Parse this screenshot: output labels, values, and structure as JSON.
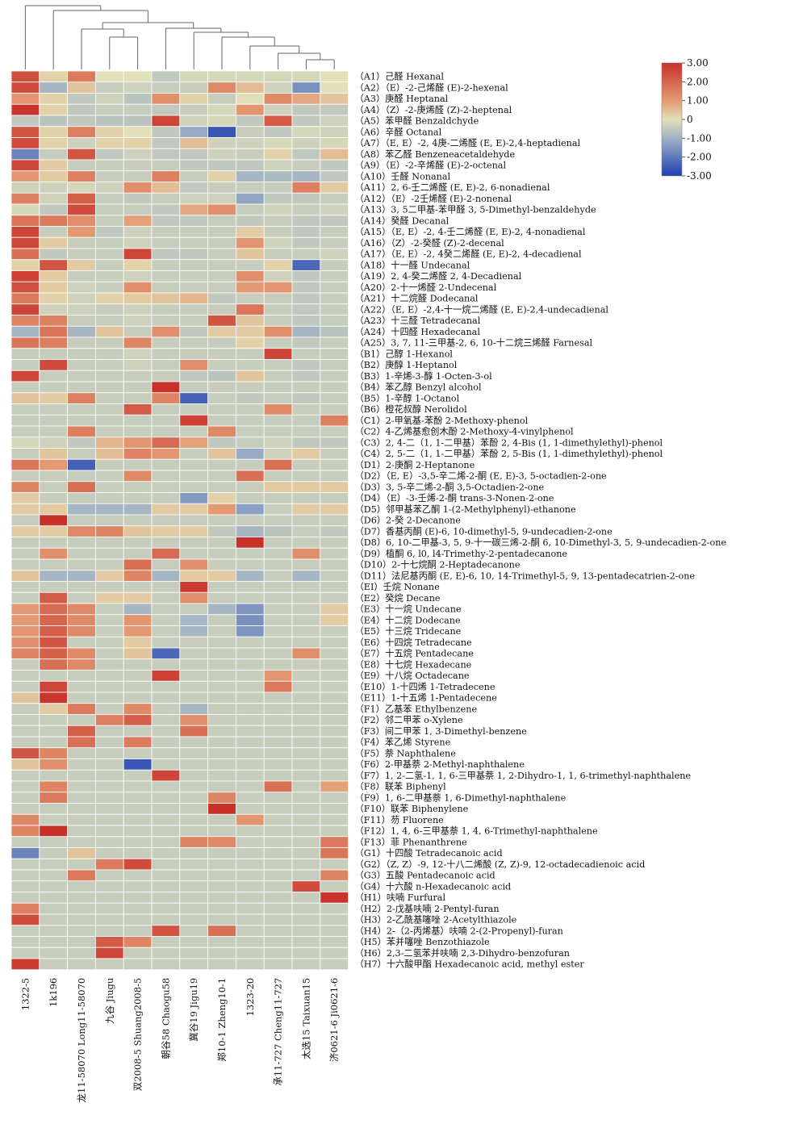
{
  "chart_data": {
    "type": "heatmap",
    "title": "",
    "xlabel": "",
    "ylabel": "",
    "columns": [
      "1322-5",
      "1k196",
      "龙11-58070 Long11-58070",
      "九谷 Jiugu",
      "双2008-5 Shuang2008-5",
      "朝谷58 Chaogu58",
      "冀谷19 Jigu19",
      "郑10-1 Zheng10-1",
      "1323-20",
      "承11-727 Cheng11-727",
      "太选15 Taixuan15",
      "济0621-6 Ji0621-6"
    ],
    "rows": [
      "（A1）己醛 Hexanal",
      "（A2）（E）-2-己烯醛 (E)-2-hexenal",
      "（A3）庚醛 Heptanal",
      "（A4）（Z）-2-庚烯醛 (Z)-2-heptenal",
      "（A5）苯甲醛 Benzaldchyde",
      "（A6）辛醛 Octanal",
      "（A7）（E, E）-2, 4庚-二烯醛 (E, E)-2,4-heptadienal",
      "（A8）苯乙醛 Benzeneacetaldehyde",
      "（A9）（E）-2-辛烯醛 (E)-2-octenal",
      "（A10）壬醛 Nonanal",
      "（A11）2, 6-壬二烯醛 (E, E)-2, 6-nonadienal",
      "（A12）（E）-2壬烯醛 (E)-2-nonenal",
      "（A13）3, 5二甲基-苯甲醛 3, 5-Dimethyl-benzaldehyde",
      "（A14）癸醛 Decanal",
      "（A15）（E, E）-2, 4-壬二烯醛 (E, E)-2, 4-nonadienal",
      "（A16）（Z）-2-癸醛 (Z)-2-decenal",
      "（A17）（E, E）-2, 4癸二烯醛 (E, E)-2, 4-decadienal",
      "（A18）十一醛 Undecanal",
      "（A19）2, 4-癸二烯醛 2, 4-Decadienal",
      "（A20）2-十一烯醛 2-Undecenal",
      "（A21）十二烷醛 Dodecanal",
      "（A22）（E, E）-2,4-十一烷二烯醛 (E, E)-2,4-undecadienal",
      "（A23）十三醛 Tetradecanal",
      "（A24）十四醛 Hexadecanal",
      "（A25）3, 7, 11-三甲基-2, 6, 10-十二烷三烯醛 Farnesal",
      "（B1）己醇 1-Hexanol",
      "（B2）庚醇 1-Heptanol",
      "（B3）1-辛烯-3-醇 1-Octen-3-ol",
      "（B4）苯乙醇 Benzyl alcohol",
      "（B5）1-辛醇 1-Octanol",
      "（B6）橙花叔醇 Nerolidol",
      "（C1）2-甲氧基-苯酚 2-Methoxy-phenol",
      "（C2）4-乙烯基愈创木酚 2-Methoxy-4-vinylphenol",
      "（C3）2, 4-二（1, 1-二甲基）苯酚 2, 4-Bis (1, 1-dimethylethyl)-phenol",
      "（C4）2, 5-二（1, 1-二甲基）苯酚 2, 5-Bis (1, 1-dimethylethyl)-phenol",
      "（D1）2-庚酮 2-Heptanone",
      "（D2）（E, E）-3,5-辛二烯-2-酮 (E, E)-3, 5-octadien-2-one",
      "（D3）3, 5-辛二烯-2-酮 3,5-Octadien-2-one",
      "（D4）（E）-3-壬烯-2-酮 trans-3-Nonen-2-one",
      "（D5）邻甲基苯乙酮 1-(2-Methylphenyl)-ethanone",
      "（D6）2-癸 2-Decanone",
      "（D7）香基丙酮 (E)-6, 10-dimethyl-5, 9-undecadien-2-one",
      "（D8）6, 10-二甲基-3, 5, 9-十一碳三烯-2-酮 6, 10-Dimethyl-3, 5, 9-undecadien-2-one",
      "（D9）植酮 6, l0, l4-Trimethy-2-pentadecanone",
      "（D10）2-十七烷酮 2-Heptadecanone",
      "（D11）法尼基丙酮 (E, E)-6, 10, 14-Trimethyl-5, 9, 13-pentadecatrien-2-one",
      "（EI）壬烷 Nonane",
      "（E2）癸烷 Decane",
      "（E3）十一烷 Undecane",
      "（E4）十二烷 Dodecane",
      "（E5）十三烷 Tridecane",
      "（E6）十四烷 Tetradecane",
      "（E7）十五烷 Pentadecane",
      "（E8）十七烷 Hexadecane",
      "（E9）十八烷 Octadecane",
      "（E10）1-十四烯 1-Tetradecene",
      "（E11）1-十五烯 1-Pentadecene",
      "（F1）乙基苯 Ethylbenzene",
      "（F2）邻二甲苯 o-Xylene",
      "（F3）间二甲苯 1, 3-Dimethyl-benzene",
      "（F4）苯乙烯 Styrene",
      "（F5）萘 Naphthalene",
      "（F6）2-甲基萘 2-Methyl-naphthalene",
      "（F7）1, 2-二氢-1, 1, 6-三甲基萘 1, 2-Dihydro-1, 1, 6-trimethyl-naphthalene",
      "（F8）联苯 Biphenyl",
      "（F9）1, 6-二甲基萘 1, 6-Dimethyl-naphthalene",
      "（F10）联苯 Biphenylene",
      "（F11）芴 Fluorene",
      "（F12）1, 4, 6-三甲基萘 1, 4, 6-Trimethyl-naphthalene",
      "（F13）菲 Phenanthrene",
      "（G1）十四酸 Tetradecanoic acid",
      "（G2）（Z, Z）-9, 12-十八二烯酸 (Z, Z)-9, 12-octadecadienoic acid",
      "（G3）五酸 Pentadecanoic acid",
      "（G4）十六酸 n-Hexadecanoic acid",
      "（H1）呋喃 Furfural",
      "（H2）2-戊基呋喃 2-Pentyl-furan",
      "（H3）2-乙酰基噻唑 2-Acetylthiazole",
      "（H4）2-（2-丙烯基）呋喃 2-(2-Propenyl)-furan",
      "（H5）苯并噻唑 Benzothiazole",
      "（H6）2,3-二氢苯并呋喃 2,3-Dihydro-benzofuran",
      "（H7）十六酸甲酯 Hexadecanoic acid, methyl ester"
    ],
    "values": [
      [
        2.4,
        0.2,
        1.6,
        0.0,
        0.0,
        -0.5,
        -0.2,
        -0.2,
        -0.2,
        -0.2,
        -0.2,
        0.0
      ],
      [
        2.5,
        -0.9,
        0.4,
        -0.4,
        -0.3,
        -0.4,
        -0.4,
        1.3,
        0.5,
        -0.3,
        -1.6,
        0.0
      ],
      [
        1.1,
        0.2,
        -0.5,
        -0.3,
        -0.6,
        1.2,
        0.2,
        -0.4,
        0.0,
        1.3,
        0.8,
        0.4
      ],
      [
        2.9,
        0.2,
        -0.5,
        -0.4,
        -0.4,
        -0.5,
        -0.4,
        -0.2,
        1.1,
        -0.3,
        -0.5,
        -0.5
      ],
      [
        -0.5,
        -0.6,
        -0.5,
        -0.6,
        -0.6,
        2.6,
        -0.3,
        -0.2,
        -0.5,
        2.2,
        -0.5,
        -0.3
      ],
      [
        2.3,
        0.2,
        1.5,
        0.2,
        0.0,
        -0.5,
        -1.1,
        -2.6,
        -0.4,
        -0.5,
        -0.2,
        -0.3
      ],
      [
        2.5,
        0.2,
        -0.3,
        0.2,
        0.2,
        -0.5,
        0.5,
        -0.3,
        -0.3,
        -0.2,
        -0.3,
        -0.2
      ],
      [
        -1.8,
        -0.4,
        2.3,
        -0.5,
        -0.3,
        -0.5,
        -0.5,
        -0.3,
        -0.4,
        0.2,
        -0.5,
        0.5
      ],
      [
        2.6,
        0.3,
        -0.4,
        -0.4,
        -0.4,
        -0.4,
        -0.5,
        -0.5,
        -0.5,
        -0.3,
        -0.4,
        -0.5
      ],
      [
        1.1,
        0.3,
        1.5,
        -0.4,
        -0.4,
        1.5,
        -0.4,
        0.2,
        -0.9,
        -0.8,
        -0.9,
        -0.5
      ],
      [
        -0.3,
        -0.3,
        -0.2,
        -0.3,
        1.2,
        0.5,
        -0.5,
        -0.4,
        -0.4,
        -0.4,
        1.5,
        0.3
      ],
      [
        1.5,
        -0.3,
        2.1,
        -0.4,
        -0.5,
        -0.4,
        -0.3,
        -0.3,
        -1.2,
        -0.5,
        -0.5,
        -0.4
      ],
      [
        -0.2,
        -0.5,
        2.5,
        -0.4,
        -0.4,
        -0.5,
        0.8,
        1.2,
        -0.4,
        -0.3,
        -0.4,
        -0.3
      ],
      [
        1.7,
        1.6,
        1.2,
        -0.4,
        0.9,
        -0.5,
        -0.5,
        -0.4,
        -0.5,
        -0.4,
        -0.5,
        -0.5
      ],
      [
        2.6,
        -0.4,
        1.0,
        -0.5,
        -0.3,
        -0.4,
        -0.4,
        -0.4,
        0.3,
        -0.4,
        -0.5,
        -0.4
      ],
      [
        2.6,
        0.3,
        -0.4,
        -0.4,
        -0.3,
        -0.4,
        -0.4,
        -0.4,
        1.1,
        -0.3,
        -0.5,
        -0.4
      ],
      [
        1.8,
        -0.5,
        -0.4,
        -0.4,
        2.6,
        -0.5,
        -0.5,
        -0.4,
        0.4,
        -0.4,
        -0.4,
        -0.3
      ],
      [
        0.2,
        2.3,
        0.3,
        -0.4,
        0.2,
        -0.4,
        -0.4,
        -0.4,
        -0.4,
        0.2,
        -2.3,
        -0.4
      ],
      [
        2.7,
        0.3,
        -0.4,
        -0.4,
        -0.3,
        -0.4,
        -0.4,
        -0.4,
        1.2,
        -0.3,
        -0.5,
        -0.4
      ],
      [
        2.4,
        0.3,
        -0.3,
        -0.4,
        1.2,
        -0.4,
        -0.4,
        -0.4,
        1.0,
        1.1,
        -0.5,
        -0.4
      ],
      [
        1.6,
        0.2,
        -0.3,
        0.2,
        0.3,
        0.4,
        0.6,
        -0.5,
        -0.4,
        -0.4,
        -0.5,
        -0.4
      ],
      [
        2.6,
        -0.3,
        -0.3,
        -0.4,
        -0.3,
        -0.4,
        -0.4,
        -0.4,
        1.7,
        -0.4,
        -0.5,
        -0.4
      ],
      [
        1.4,
        1.5,
        -0.4,
        -0.4,
        -0.3,
        -0.4,
        -0.4,
        2.3,
        0.4,
        -0.4,
        -0.5,
        -0.4
      ],
      [
        -0.9,
        1.7,
        -0.9,
        0.4,
        -0.4,
        1.2,
        -0.5,
        0.3,
        0.3,
        1.2,
        -0.9,
        -0.6
      ],
      [
        1.7,
        1.5,
        -0.4,
        -0.4,
        1.4,
        -0.4,
        -0.4,
        -0.4,
        0.2,
        -0.4,
        -0.5,
        -0.4
      ],
      [
        -0.4,
        -0.4,
        -0.4,
        -0.4,
        -0.3,
        -0.4,
        -0.4,
        -0.4,
        -0.4,
        2.6,
        -0.4,
        -0.4
      ],
      [
        -0.4,
        2.5,
        -0.4,
        -0.4,
        -0.3,
        -0.4,
        1.2,
        -0.4,
        -0.4,
        -0.4,
        -0.5,
        -0.4
      ],
      [
        2.6,
        -0.4,
        -0.4,
        -0.4,
        -0.4,
        -0.4,
        -0.5,
        -0.6,
        0.4,
        -0.4,
        -0.5,
        -0.4
      ],
      [
        -0.4,
        -0.4,
        -0.4,
        -0.4,
        -0.4,
        3.0,
        -0.4,
        -0.4,
        -0.4,
        -0.4,
        -0.4,
        -0.4
      ],
      [
        0.4,
        0.3,
        1.5,
        -0.4,
        -0.4,
        1.4,
        -2.4,
        -0.4,
        -0.5,
        -0.4,
        -0.5,
        -0.4
      ],
      [
        -0.4,
        -0.4,
        -0.4,
        -0.4,
        2.2,
        -0.4,
        -0.4,
        -0.4,
        -0.4,
        1.3,
        -0.4,
        -0.4
      ],
      [
        -0.4,
        -0.4,
        -0.4,
        -0.4,
        -0.4,
        -0.4,
        2.7,
        -0.4,
        -0.4,
        -0.4,
        -0.4,
        1.5
      ],
      [
        -0.4,
        -0.4,
        1.5,
        -0.4,
        -0.4,
        -0.4,
        -0.4,
        1.3,
        -0.4,
        -0.4,
        -0.4,
        -0.4
      ],
      [
        -0.2,
        -0.3,
        -0.5,
        0.6,
        1.1,
        1.9,
        0.9,
        -0.5,
        -0.4,
        -0.3,
        -0.5,
        -0.5
      ],
      [
        -0.4,
        0.4,
        -0.4,
        0.5,
        1.4,
        1.1,
        -0.4,
        0.4,
        -1.1,
        -0.3,
        0.3,
        -0.4
      ],
      [
        1.7,
        1.0,
        -2.4,
        -0.4,
        -0.4,
        -0.4,
        -0.4,
        -0.4,
        -0.4,
        1.8,
        -0.4,
        -0.4
      ],
      [
        -0.4,
        -0.4,
        -0.4,
        -0.4,
        1.3,
        -0.4,
        -0.4,
        -0.4,
        1.8,
        -0.4,
        -0.4,
        -0.4
      ],
      [
        1.4,
        -0.4,
        1.8,
        -0.4,
        -0.4,
        -0.4,
        -0.4,
        -0.4,
        -0.4,
        0.3,
        0.3,
        0.3
      ],
      [
        0.3,
        -0.4,
        -0.4,
        -0.4,
        -0.4,
        -0.4,
        -1.4,
        0.2,
        -0.4,
        -0.4,
        -0.4,
        -0.4
      ],
      [
        0.3,
        0.3,
        -0.9,
        -0.9,
        -0.9,
        0.3,
        0.3,
        1.0,
        -1.3,
        -0.4,
        0.3,
        0.3
      ],
      [
        -0.4,
        3.0,
        -0.4,
        -0.4,
        -0.4,
        -0.4,
        -0.4,
        -0.4,
        -0.4,
        -0.4,
        -0.4,
        -0.4
      ],
      [
        0.3,
        0.3,
        1.3,
        1.4,
        0.4,
        0.3,
        0.3,
        -0.5,
        -0.9,
        -0.6,
        -0.4,
        -0.5
      ],
      [
        -0.4,
        -0.4,
        -0.4,
        -0.4,
        -0.4,
        -0.4,
        -0.4,
        -0.4,
        3.0,
        -0.4,
        -0.4,
        -0.4
      ],
      [
        -0.4,
        1.2,
        -0.4,
        -0.4,
        -0.4,
        1.9,
        -0.4,
        -0.4,
        -0.4,
        -0.4,
        1.2,
        -0.4
      ],
      [
        -0.4,
        -0.4,
        -0.4,
        -0.4,
        1.8,
        -0.4,
        1.2,
        -0.4,
        -0.4,
        -0.4,
        -0.4,
        -0.4
      ],
      [
        0.4,
        -0.9,
        -0.9,
        0.3,
        1.4,
        -0.9,
        0.3,
        0.3,
        -0.9,
        -0.4,
        -0.9,
        -0.4
      ],
      [
        -0.4,
        -0.4,
        -0.4,
        -0.4,
        -0.4,
        -0.4,
        2.8,
        -0.4,
        -0.4,
        -0.4,
        -0.4,
        -0.4
      ],
      [
        -0.4,
        2.2,
        -0.4,
        0.3,
        0.3,
        -0.4,
        1.2,
        -0.4,
        -0.4,
        -0.4,
        -0.4,
        -0.4
      ],
      [
        1.0,
        1.9,
        1.3,
        -0.4,
        -0.9,
        -0.4,
        -0.4,
        -0.9,
        -1.5,
        -0.4,
        -0.4,
        0.3
      ],
      [
        1.0,
        2.0,
        1.3,
        -0.4,
        1.1,
        -0.4,
        -0.9,
        -0.4,
        -1.6,
        -0.4,
        -0.4,
        0.3
      ],
      [
        1.1,
        2.1,
        1.3,
        -0.4,
        1.0,
        -0.4,
        -0.9,
        -0.4,
        -1.5,
        -0.4,
        -0.4,
        -0.4
      ],
      [
        1.2,
        2.3,
        -0.4,
        -0.4,
        0.3,
        -0.4,
        -0.4,
        -0.4,
        -0.4,
        -0.4,
        -0.4,
        -0.4
      ],
      [
        1.4,
        2.1,
        1.3,
        -0.4,
        0.4,
        -2.3,
        -0.4,
        -0.4,
        -0.4,
        -0.4,
        1.2,
        -0.4
      ],
      [
        -0.4,
        1.8,
        1.3,
        -0.4,
        -0.4,
        -0.4,
        -0.4,
        -0.4,
        -0.4,
        -0.4,
        -0.4,
        -0.4
      ],
      [
        -0.4,
        -0.4,
        -0.4,
        -0.4,
        -0.4,
        2.7,
        -0.4,
        -0.4,
        -0.4,
        1.1,
        -0.4,
        -0.4
      ],
      [
        -0.4,
        2.6,
        -0.4,
        -0.4,
        -0.4,
        -0.4,
        -0.4,
        -0.4,
        -0.4,
        1.6,
        -0.4,
        -0.4
      ],
      [
        0.4,
        2.9,
        -0.4,
        -0.4,
        -0.4,
        -0.4,
        -0.4,
        -0.4,
        -0.4,
        -0.4,
        -0.4,
        -0.4
      ],
      [
        -0.4,
        0.3,
        1.6,
        -0.4,
        1.3,
        -0.4,
        -0.9,
        -0.4,
        -0.4,
        -0.4,
        -0.4,
        -0.4
      ],
      [
        -0.4,
        -0.4,
        -0.4,
        1.5,
        2.1,
        -0.4,
        1.2,
        -0.4,
        -0.4,
        -0.4,
        -0.4,
        -0.4
      ],
      [
        -0.4,
        -0.4,
        2.1,
        -0.4,
        -0.4,
        -0.4,
        1.8,
        -0.4,
        -0.4,
        -0.4,
        -0.4,
        -0.4
      ],
      [
        -0.4,
        -0.4,
        1.8,
        -0.4,
        1.6,
        -0.4,
        -0.4,
        -0.4,
        -0.4,
        -0.4,
        -0.4,
        -0.4
      ],
      [
        2.3,
        1.4,
        -0.4,
        -0.4,
        -0.4,
        -0.4,
        -0.4,
        -0.4,
        -0.4,
        -0.4,
        -0.4,
        -0.4
      ],
      [
        0.4,
        1.2,
        -0.4,
        -0.4,
        -2.6,
        -0.4,
        -0.4,
        -0.4,
        -0.4,
        -0.4,
        -0.4,
        -0.4
      ],
      [
        -0.4,
        -0.4,
        -0.4,
        -0.4,
        -0.4,
        2.6,
        -0.4,
        -0.4,
        -0.4,
        -0.4,
        -0.4,
        -0.4
      ],
      [
        -0.4,
        1.4,
        -0.4,
        -0.4,
        -0.4,
        -0.4,
        -0.4,
        -0.4,
        -0.4,
        1.8,
        -0.4,
        0.9
      ],
      [
        -0.4,
        1.6,
        -0.4,
        -0.4,
        -0.4,
        -0.4,
        -0.4,
        1.4,
        -0.4,
        -0.4,
        -0.4,
        -0.4
      ],
      [
        -0.4,
        -0.4,
        -0.4,
        -0.4,
        -0.4,
        -0.4,
        -0.4,
        3.0,
        -0.4,
        -0.4,
        -0.4,
        -0.4
      ],
      [
        1.3,
        -0.4,
        -0.4,
        -0.4,
        -0.4,
        -0.4,
        -0.4,
        -0.4,
        1.1,
        -0.4,
        -0.4,
        -0.4
      ],
      [
        1.4,
        3.0,
        -0.4,
        -0.4,
        -0.4,
        -0.4,
        -0.4,
        -0.4,
        -0.4,
        -0.4,
        -0.4,
        -0.4
      ],
      [
        -0.4,
        -0.4,
        -0.4,
        -0.4,
        -0.4,
        -0.4,
        1.4,
        1.3,
        -0.4,
        -0.4,
        -0.4,
        1.6
      ],
      [
        -1.8,
        -0.4,
        0.4,
        -0.4,
        -0.4,
        -0.4,
        -0.4,
        -0.4,
        -0.4,
        -0.4,
        -0.4,
        1.7
      ],
      [
        -0.4,
        -0.4,
        -0.4,
        1.6,
        2.5,
        -0.4,
        -0.4,
        -0.4,
        -0.4,
        -0.4,
        -0.4,
        -0.4
      ],
      [
        -0.4,
        -0.4,
        1.6,
        -0.4,
        -0.4,
        -0.4,
        -0.4,
        -0.4,
        -0.4,
        -0.4,
        -0.4,
        1.4
      ],
      [
        -0.4,
        -0.4,
        -0.4,
        -0.4,
        -0.4,
        -0.4,
        -0.4,
        -0.4,
        -0.4,
        -0.4,
        2.5,
        -0.4
      ],
      [
        -0.4,
        -0.4,
        -0.4,
        -0.4,
        -0.4,
        -0.4,
        -0.4,
        -0.4,
        -0.4,
        -0.4,
        -0.4,
        2.9
      ],
      [
        1.5,
        -0.4,
        -0.4,
        -0.4,
        -0.4,
        -0.4,
        -0.4,
        -0.4,
        -0.4,
        -0.4,
        -0.4,
        -0.4
      ],
      [
        2.5,
        -0.4,
        -0.4,
        -0.4,
        -0.4,
        -0.4,
        -0.4,
        -0.4,
        -0.4,
        -0.4,
        -0.4,
        -0.4
      ],
      [
        -0.4,
        -0.4,
        -0.4,
        -0.4,
        -0.4,
        2.3,
        -0.4,
        1.8,
        -0.4,
        -0.4,
        -0.4,
        -0.4
      ],
      [
        -0.4,
        -0.4,
        -0.4,
        2.2,
        1.4,
        -0.4,
        -0.4,
        -0.4,
        -0.4,
        -0.4,
        -0.4,
        -0.4
      ],
      [
        -0.4,
        -0.4,
        -0.4,
        2.6,
        -0.4,
        -0.4,
        -0.4,
        -0.4,
        -0.4,
        -0.4,
        -0.4,
        -0.4
      ],
      [
        2.8,
        -0.4,
        -0.4,
        -0.4,
        -0.4,
        -0.4,
        -0.4,
        -0.4,
        -0.4,
        -0.4,
        -0.4,
        -0.4
      ]
    ],
    "color_scale": {
      "min": -3.0,
      "max": 3.0,
      "stops": [
        [
          "#1f3fb0",
          -3.0
        ],
        [
          "#9fb1c4",
          -1.0
        ],
        [
          "#e2e0b8",
          0.0
        ],
        [
          "#e39a72",
          1.0
        ],
        [
          "#c8302a",
          3.0
        ]
      ],
      "ticks": [
        "3.00",
        "2.00",
        "1.00",
        "0",
        "-1.00",
        "-2.00",
        "-3.00"
      ]
    },
    "legend": "top-right",
    "grid": true
  }
}
